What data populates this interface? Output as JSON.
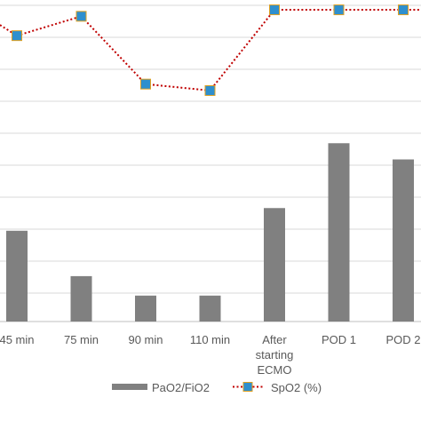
{
  "chart_data": {
    "type": "bar+line",
    "categories": [
      [
        "45 min"
      ],
      [
        "75 min"
      ],
      [
        "90 min"
      ],
      [
        "110 min"
      ],
      [
        "After",
        "starting",
        "ECMO"
      ],
      [
        "POD 1"
      ],
      [
        "POD 2"
      ]
    ],
    "series": [
      {
        "name": "PaO2/FiO2",
        "type": "bar",
        "color": "#808080",
        "values": [
          0.28,
          0.14,
          0.08,
          0.08,
          0.35,
          0.55,
          0.5
        ]
      },
      {
        "name": "SpO2 (%)",
        "type": "line",
        "line_color": "#c00000",
        "line_style": "dotted",
        "marker": "square",
        "marker_color": "#2e8fce",
        "values": [
          0.91,
          0.97,
          0.76,
          0.74,
          0.99,
          0.99,
          0.99
        ]
      }
    ],
    "grid": true,
    "legend": "bottom",
    "note": ""
  }
}
